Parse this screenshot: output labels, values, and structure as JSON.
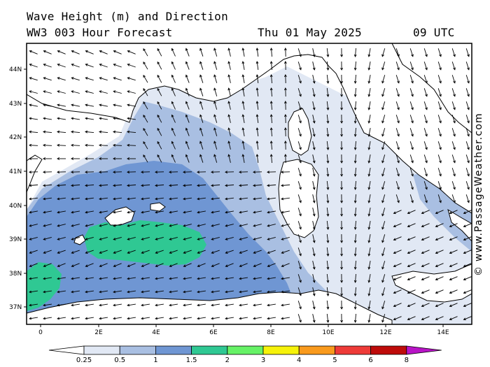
{
  "header": {
    "title": "Wave Height (m) and Direction",
    "model": "WW3 003 Hour Forecast",
    "date": "Thu 01 May 2025",
    "time": "09 UTC"
  },
  "map": {
    "lat_labels": [
      "44N",
      "43N",
      "42N",
      "41N",
      "40N",
      "39N",
      "38N",
      "37N"
    ],
    "lon_labels": [
      "0",
      "2E",
      "4E",
      "6E",
      "8E",
      "10E",
      "12E",
      "14E"
    ],
    "lon_range": [
      -0.5,
      15
    ],
    "lat_range": [
      36.5,
      44.8
    ],
    "colors": {
      "sea_base": "#ffffff",
      "land": "#ffffff",
      "coast": "#000000"
    }
  },
  "legend": {
    "labels": [
      "0.25",
      "0.5",
      "1",
      "1.5",
      "2",
      "3",
      "4",
      "5",
      "6",
      "8"
    ],
    "colors": [
      "#ffffff",
      "#e1e8f4",
      "#a9bfe2",
      "#6f96d3",
      "#2fc893",
      "#66f266",
      "#f6f20a",
      "#f99a1d",
      "#ee3b38",
      "#be0b0a",
      "#b814c6"
    ]
  },
  "credit": "© www.PassageWeather.com"
}
